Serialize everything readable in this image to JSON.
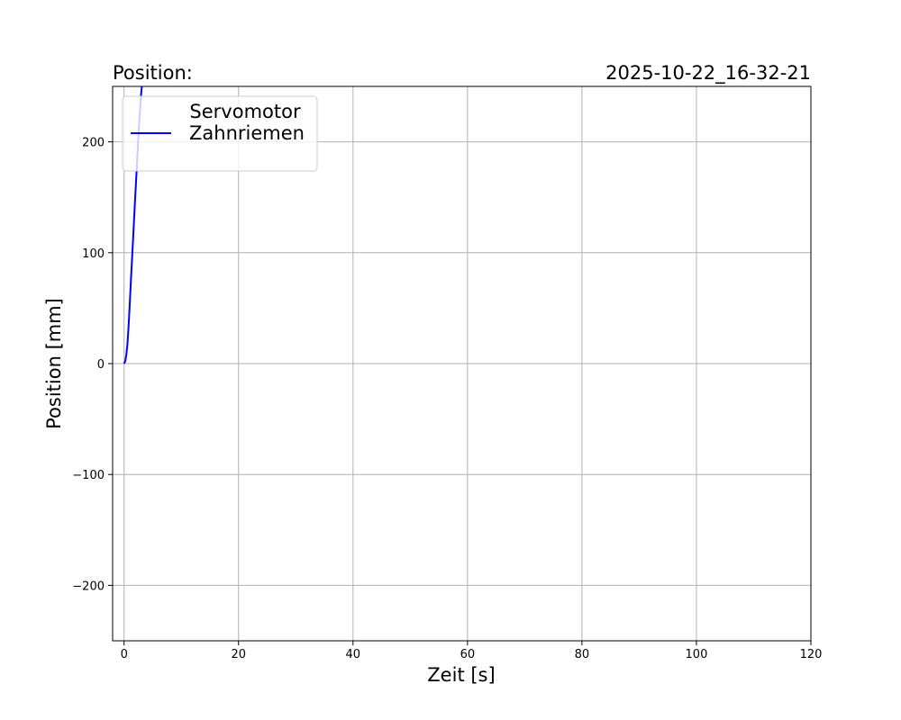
{
  "chart_data": {
    "type": "line",
    "title_left": "Position:",
    "title_right": "2025-10-22_16-32-21",
    "xlabel": "Zeit [s]",
    "ylabel": "Position [mm]",
    "xlim": [
      -2,
      120
    ],
    "ylim": [
      -250,
      250
    ],
    "xticks": [
      0,
      20,
      40,
      60,
      80,
      100,
      120
    ],
    "yticks": [
      -200,
      -100,
      0,
      100,
      200
    ],
    "xtick_labels": [
      "0",
      "20",
      "40",
      "60",
      "80",
      "100",
      "120"
    ],
    "ytick_labels": [
      "−200",
      "−100",
      "0",
      "100",
      "200"
    ],
    "grid": true,
    "legend": {
      "placement": "upper-left",
      "entries": [
        {
          "label_line1": "Servomotor",
          "label_line2": "Zahnriemen",
          "color": "#0000ff"
        }
      ]
    },
    "series": [
      {
        "name": "Servomotor Zahnriemen",
        "color": "#0000ff",
        "x": [
          0,
          0.2,
          0.4,
          0.6,
          0.8,
          1.0,
          1.2,
          1.4,
          1.6,
          1.8,
          2.0,
          2.2,
          2.4,
          2.6,
          2.8,
          3.0,
          3.3
        ],
        "y": [
          0,
          2,
          8,
          18,
          35,
          55,
          75,
          95,
          115,
          135,
          155,
          175,
          195,
          213,
          230,
          245,
          260
        ]
      }
    ]
  }
}
